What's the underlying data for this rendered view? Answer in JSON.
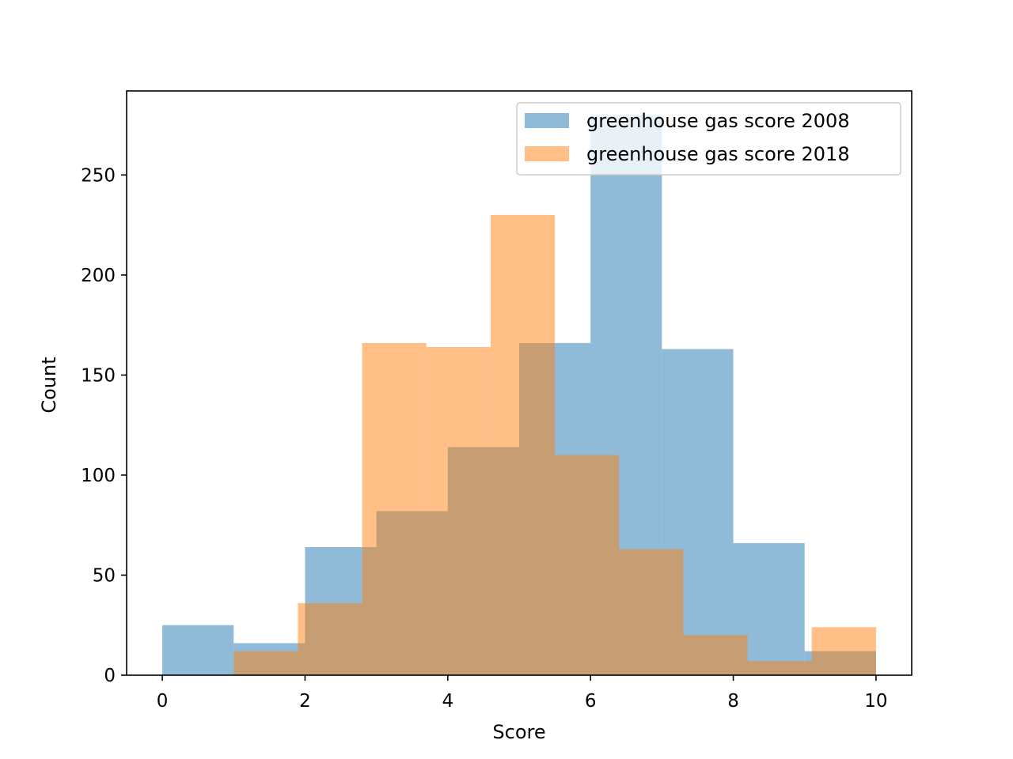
{
  "chart_data": {
    "type": "histogram",
    "title": "",
    "xlabel": "Score",
    "ylabel": "Count",
    "xlim": [
      -0.5,
      10.5
    ],
    "ylim": [
      0,
      292
    ],
    "xticks": [
      0,
      2,
      4,
      6,
      8,
      10
    ],
    "yticks": [
      0,
      50,
      100,
      150,
      200,
      250
    ],
    "grid": false,
    "legend_position": "top-right",
    "series": [
      {
        "name": "greenhouse gas score 2008",
        "color": "#1f77b4",
        "opacity": 0.5,
        "bins": [
          {
            "x0": 0,
            "x1": 1,
            "count": 25
          },
          {
            "x0": 1,
            "x1": 2,
            "count": 16
          },
          {
            "x0": 2,
            "x1": 3,
            "count": 64
          },
          {
            "x0": 3,
            "x1": 4,
            "count": 82
          },
          {
            "x0": 4,
            "x1": 5,
            "count": 114
          },
          {
            "x0": 5,
            "x1": 6,
            "count": 166
          },
          {
            "x0": 6,
            "x1": 7,
            "count": 280
          },
          {
            "x0": 7,
            "x1": 8,
            "count": 163
          },
          {
            "x0": 8,
            "x1": 9,
            "count": 66
          },
          {
            "x0": 9,
            "x1": 10,
            "count": 12
          }
        ]
      },
      {
        "name": "greenhouse gas score 2018",
        "color": "#ff7f0e",
        "opacity": 0.5,
        "bins": [
          {
            "x0": 1,
            "x1": 1.9,
            "count": 12
          },
          {
            "x0": 1.9,
            "x1": 2.8,
            "count": 36
          },
          {
            "x0": 2.8,
            "x1": 3.7,
            "count": 166
          },
          {
            "x0": 3.7,
            "x1": 4.6,
            "count": 164
          },
          {
            "x0": 4.6,
            "x1": 5.5,
            "count": 230
          },
          {
            "x0": 5.5,
            "x1": 6.4,
            "count": 110
          },
          {
            "x0": 6.4,
            "x1": 7.3,
            "count": 63
          },
          {
            "x0": 7.3,
            "x1": 8.2,
            "count": 20
          },
          {
            "x0": 8.2,
            "x1": 9.1,
            "count": 7
          },
          {
            "x0": 9.1,
            "x1": 10,
            "count": 24
          }
        ]
      }
    ]
  }
}
